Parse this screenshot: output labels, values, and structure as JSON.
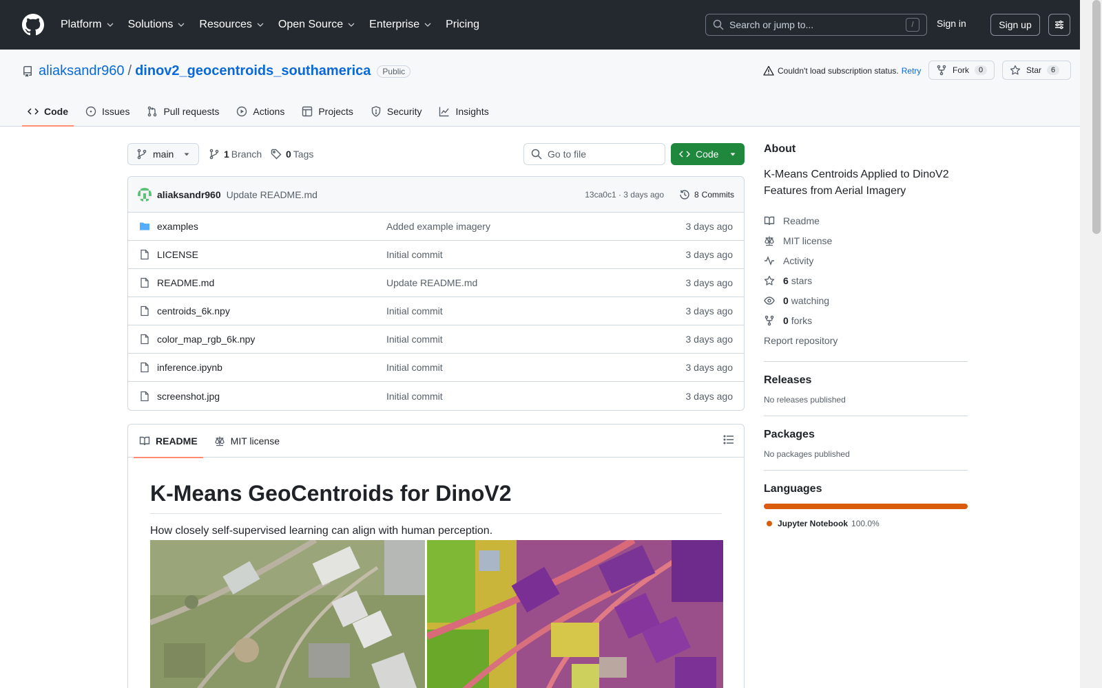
{
  "header": {
    "nav": [
      "Platform",
      "Solutions",
      "Resources",
      "Open Source",
      "Enterprise",
      "Pricing"
    ],
    "nav_has_dropdown": [
      true,
      true,
      true,
      true,
      true,
      false
    ],
    "search_placeholder": "Search or jump to...",
    "search_shortcut": "/",
    "sign_in": "Sign in",
    "sign_up": "Sign up"
  },
  "repo": {
    "owner": "aliaksandr960",
    "separator": "/",
    "name": "dinov2_geocentroids_southamerica",
    "visibility": "Public",
    "subscription_status": "Couldn't load subscription status.",
    "retry": "Retry",
    "fork_label": "Fork",
    "fork_count": "0",
    "star_label": "Star",
    "star_count": "6"
  },
  "tabs": [
    {
      "label": "Code",
      "icon": "code-icon",
      "active": true
    },
    {
      "label": "Issues",
      "icon": "issue-opened-icon",
      "active": false
    },
    {
      "label": "Pull requests",
      "icon": "git-pull-request-icon",
      "active": false
    },
    {
      "label": "Actions",
      "icon": "play-icon",
      "active": false
    },
    {
      "label": "Projects",
      "icon": "table-icon",
      "active": false
    },
    {
      "label": "Security",
      "icon": "shield-icon",
      "active": false
    },
    {
      "label": "Insights",
      "icon": "graph-icon",
      "active": false
    }
  ],
  "toolbar": {
    "branch": "main",
    "branch_count": "1",
    "branch_label": "Branch",
    "tag_count": "0",
    "tag_label": "Tags",
    "goto_placeholder": "Go to file",
    "code_button": "Code"
  },
  "latest_commit": {
    "author": "aliaksandr960",
    "message": "Update README.md",
    "meta": "13ca0c1 · 3 days ago",
    "commits_count": "8",
    "commits_label": "Commits"
  },
  "files": [
    {
      "name": "examples",
      "type": "folder",
      "message": "Added example imagery",
      "date": "3 days ago"
    },
    {
      "name": "LICENSE",
      "type": "file",
      "message": "Initial commit",
      "date": "3 days ago"
    },
    {
      "name": "README.md",
      "type": "file",
      "message": "Update README.md",
      "date": "3 days ago"
    },
    {
      "name": "centroids_6k.npy",
      "type": "file",
      "message": "Initial commit",
      "date": "3 days ago"
    },
    {
      "name": "color_map_rgb_6k.npy",
      "type": "file",
      "message": "Initial commit",
      "date": "3 days ago"
    },
    {
      "name": "inference.ipynb",
      "type": "file",
      "message": "Initial commit",
      "date": "3 days ago"
    },
    {
      "name": "screenshot.jpg",
      "type": "file",
      "message": "Initial commit",
      "date": "3 days ago"
    }
  ],
  "readme": {
    "tab_readme": "README",
    "tab_license": "MIT license",
    "heading": "K-Means GeoCentroids for DinoV2",
    "paragraph": "How closely self-supervised learning can align with human perception."
  },
  "about": {
    "heading": "About",
    "description": "K-Means Centroids Applied to DinoV2 Features from Aerial Imagery",
    "readme": "Readme",
    "license": "MIT license",
    "activity": "Activity",
    "stars_count": "6",
    "stars_label": "stars",
    "watching_count": "0",
    "watching_label": "watching",
    "forks_count": "0",
    "forks_label": "forks",
    "report": "Report repository"
  },
  "releases": {
    "heading": "Releases",
    "status": "No releases published"
  },
  "packages": {
    "heading": "Packages",
    "status": "No packages published"
  },
  "languages": {
    "heading": "Languages",
    "items": [
      {
        "name": "Jupyter Notebook",
        "percent": "100.0%",
        "color": "#da5b0b"
      }
    ]
  },
  "colors": {
    "header_bg": "#24292f",
    "link": "#0969da",
    "code_button": "#1f883d",
    "active_tab_underline": "#fd8c73"
  }
}
